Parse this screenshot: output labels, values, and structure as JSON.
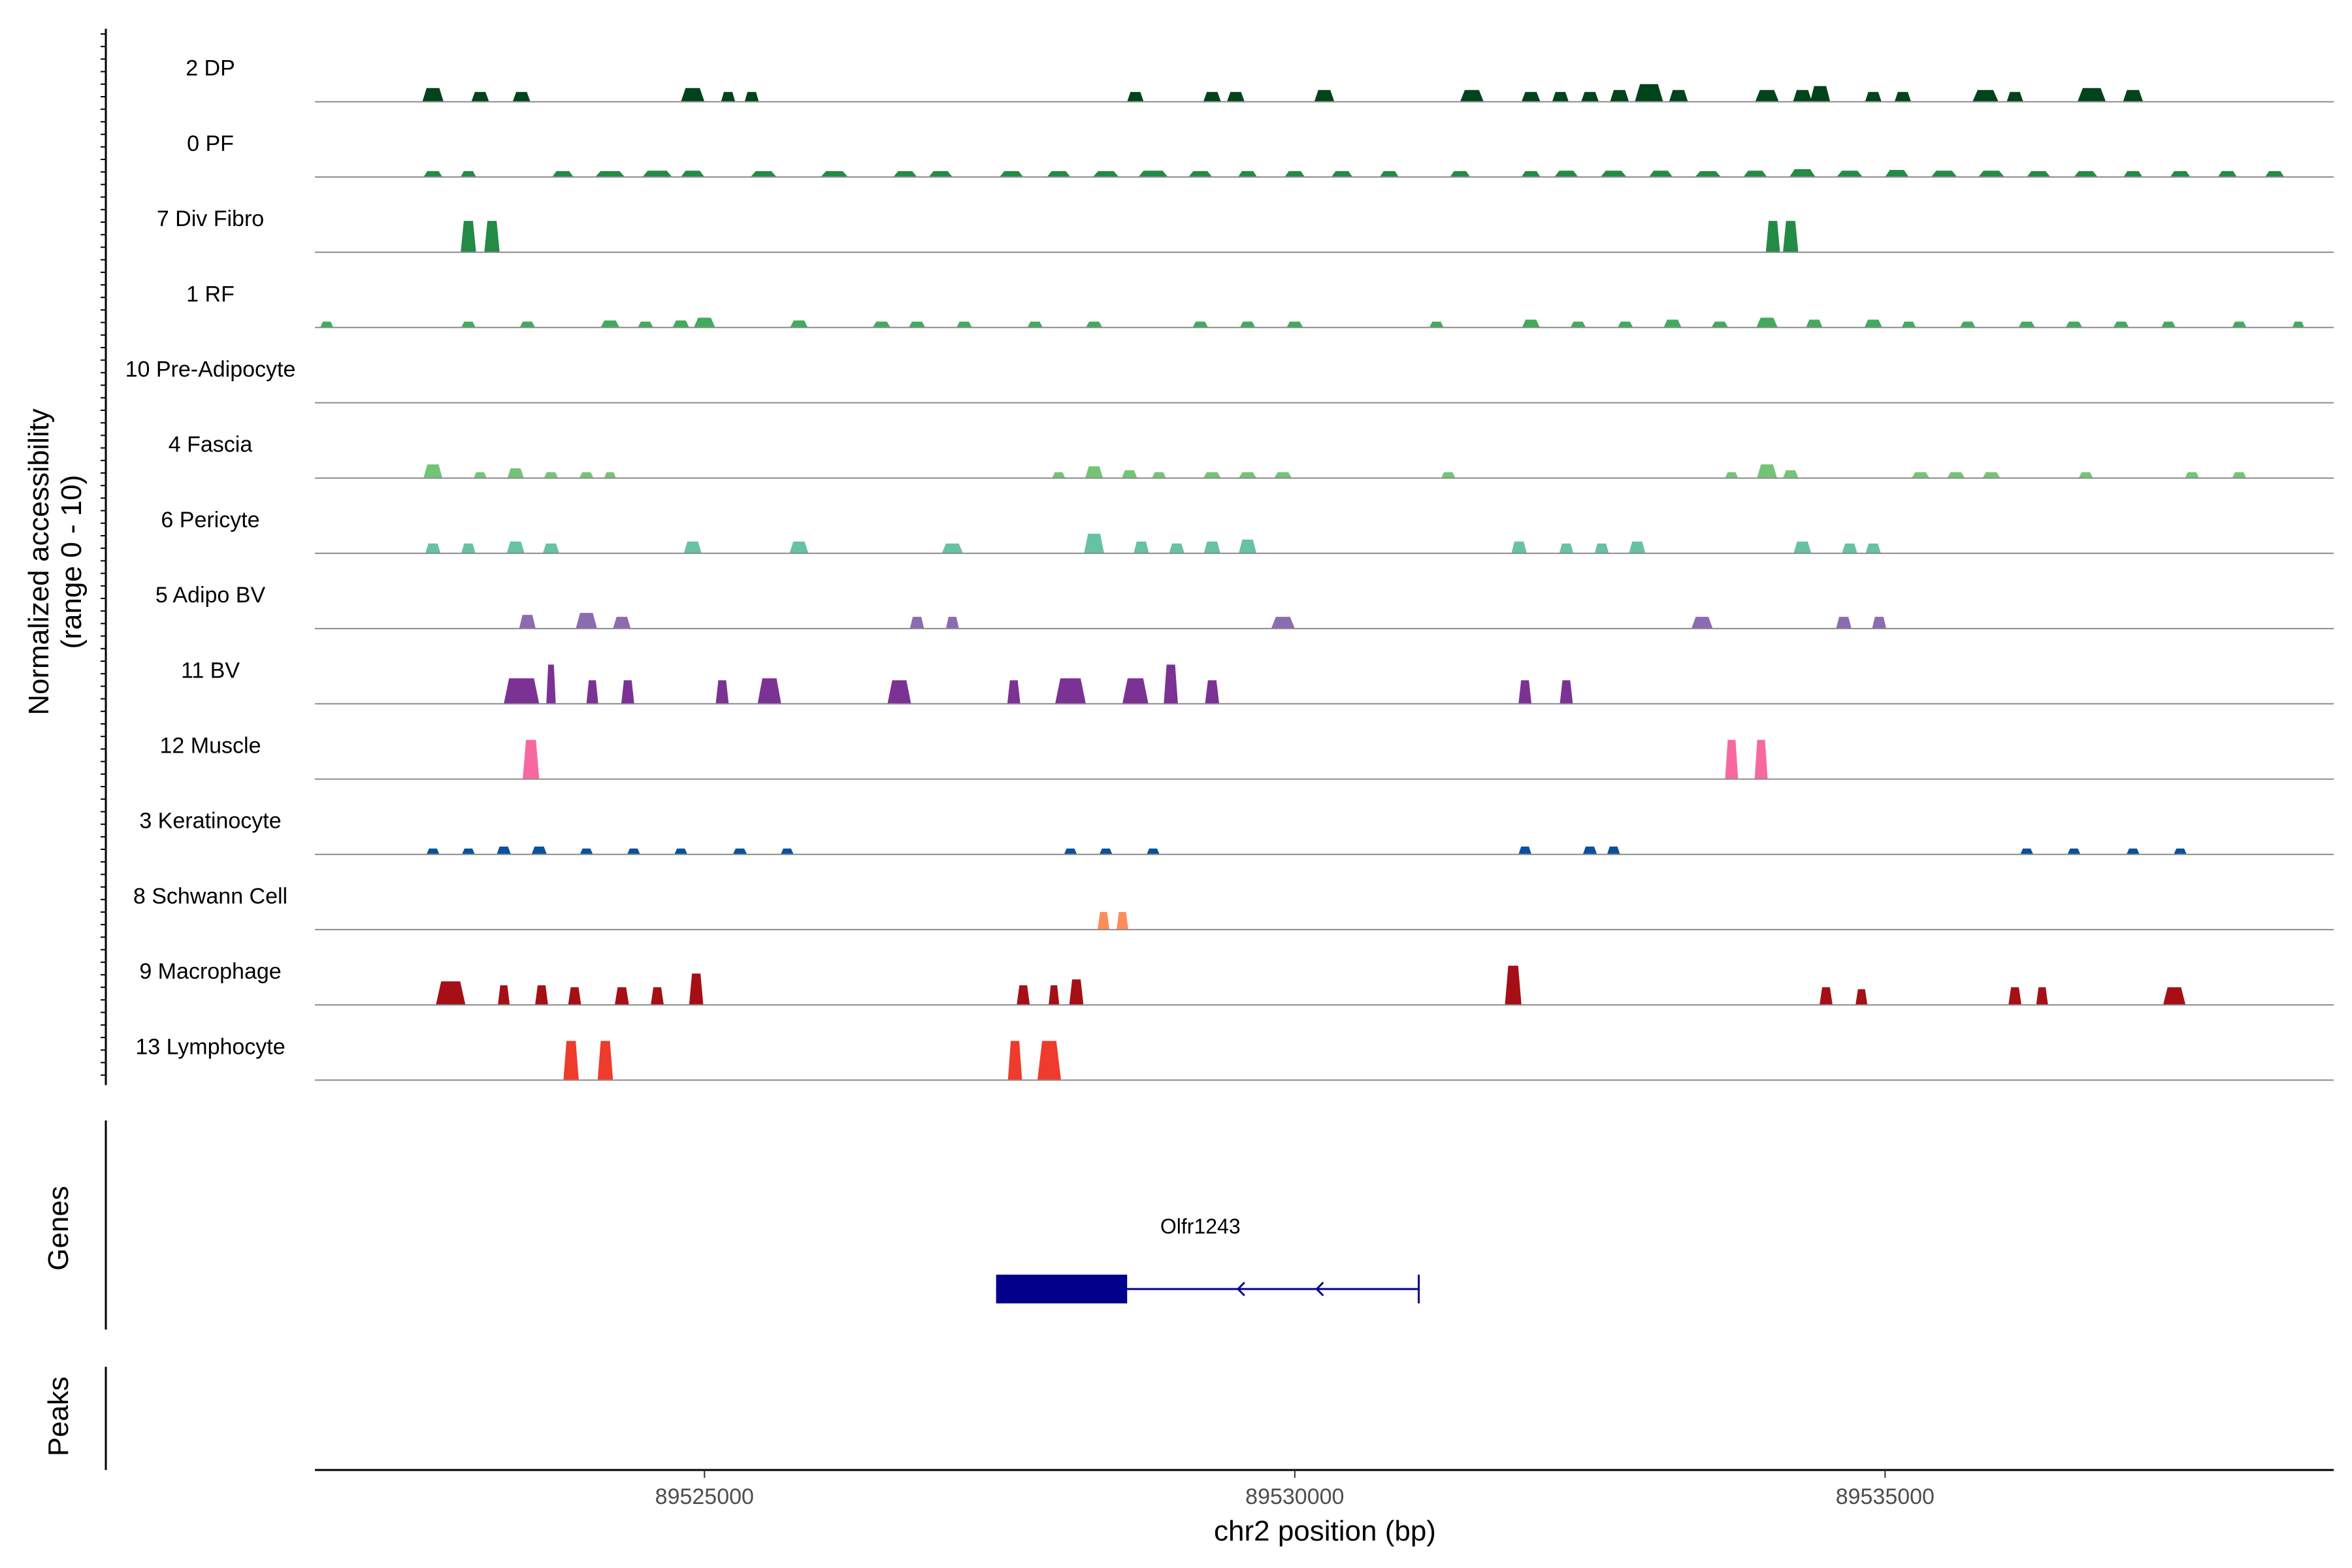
{
  "chart_data": {
    "type": "area",
    "y_axis_title": [
      "Normalized accessibility",
      "(range 0 - 10)"
    ],
    "genes_panel_title": "Genes",
    "peaks_panel_title": "Peaks",
    "xlabel": "chr2 position (bp)",
    "xlim": [
      89521700,
      89538800
    ],
    "x_ticks": [
      89525000,
      89530000,
      89535000
    ],
    "x_tick_labels": [
      "89525000",
      "89530000",
      "89535000"
    ],
    "ylim": [
      0,
      10
    ],
    "tracks": [
      {
        "name": "2 DP",
        "color": "#00441b",
        "peaks": [
          [
            89522700,
            180,
            3.5
          ],
          [
            89523100,
            150,
            2.5
          ],
          [
            89523450,
            150,
            2.5
          ],
          [
            89524900,
            200,
            3.5
          ],
          [
            89525200,
            120,
            2.5
          ],
          [
            89525400,
            120,
            2.5
          ],
          [
            89528650,
            140,
            2.5
          ],
          [
            89529300,
            150,
            2.5
          ],
          [
            89529500,
            150,
            2.5
          ],
          [
            89530250,
            170,
            3
          ],
          [
            89531500,
            200,
            3
          ],
          [
            89532000,
            160,
            2.5
          ],
          [
            89532250,
            140,
            2.5
          ],
          [
            89532500,
            150,
            2.5
          ],
          [
            89532750,
            160,
            3
          ],
          [
            89533000,
            240,
            4.5
          ],
          [
            89533250,
            160,
            3
          ],
          [
            89534000,
            200,
            3
          ],
          [
            89534300,
            160,
            3
          ],
          [
            89534450,
            170,
            4
          ],
          [
            89534900,
            140,
            2.5
          ],
          [
            89535150,
            140,
            2.5
          ],
          [
            89535850,
            220,
            3
          ],
          [
            89536100,
            140,
            2.5
          ],
          [
            89536750,
            240,
            3.5
          ],
          [
            89537100,
            170,
            3
          ]
        ]
      },
      {
        "name": "0 PF",
        "color": "#238b45",
        "peaks": [
          [
            89522700,
            160,
            1.5
          ],
          [
            89523000,
            130,
            1.5
          ],
          [
            89523800,
            180,
            1.5
          ],
          [
            89524200,
            250,
            1.5
          ],
          [
            89524600,
            250,
            1.6
          ],
          [
            89524900,
            200,
            1.6
          ],
          [
            89525500,
            220,
            1.5
          ],
          [
            89526100,
            230,
            1.5
          ],
          [
            89526700,
            200,
            1.5
          ],
          [
            89527000,
            200,
            1.5
          ],
          [
            89527600,
            200,
            1.5
          ],
          [
            89528000,
            200,
            1.5
          ],
          [
            89528400,
            220,
            1.5
          ],
          [
            89528800,
            250,
            1.6
          ],
          [
            89529200,
            200,
            1.5
          ],
          [
            89529600,
            160,
            1.5
          ],
          [
            89530000,
            170,
            1.5
          ],
          [
            89530400,
            180,
            1.5
          ],
          [
            89530800,
            160,
            1.5
          ],
          [
            89531400,
            170,
            1.5
          ],
          [
            89532000,
            160,
            1.5
          ],
          [
            89532300,
            200,
            1.6
          ],
          [
            89532700,
            220,
            1.6
          ],
          [
            89533100,
            200,
            1.6
          ],
          [
            89533500,
            220,
            1.5
          ],
          [
            89533900,
            200,
            1.6
          ],
          [
            89534300,
            220,
            2
          ],
          [
            89534700,
            220,
            1.6
          ],
          [
            89535100,
            200,
            1.8
          ],
          [
            89535500,
            220,
            1.6
          ],
          [
            89535900,
            220,
            1.6
          ],
          [
            89536300,
            200,
            1.5
          ],
          [
            89536700,
            200,
            1.5
          ],
          [
            89537100,
            160,
            1.5
          ],
          [
            89537500,
            170,
            1.5
          ],
          [
            89537900,
            160,
            1.5
          ],
          [
            89538300,
            160,
            1.5
          ]
        ]
      },
      {
        "name": "7 Div Fibro",
        "color": "#238b45",
        "peaks": [
          [
            89523000,
            130,
            8
          ],
          [
            89523200,
            130,
            8
          ],
          [
            89534050,
            120,
            8
          ],
          [
            89534200,
            130,
            8
          ]
        ]
      },
      {
        "name": "1 RF",
        "color": "#41ab5d",
        "peaks": [
          [
            89521800,
            110,
            1.5
          ],
          [
            89523000,
            120,
            1.5
          ],
          [
            89523500,
            130,
            1.5
          ],
          [
            89524200,
            160,
            1.8
          ],
          [
            89524500,
            130,
            1.5
          ],
          [
            89524800,
            140,
            1.8
          ],
          [
            89525000,
            180,
            2.5
          ],
          [
            89525800,
            150,
            1.8
          ],
          [
            89526500,
            150,
            1.5
          ],
          [
            89526800,
            140,
            1.5
          ],
          [
            89527200,
            130,
            1.5
          ],
          [
            89527800,
            130,
            1.5
          ],
          [
            89528300,
            140,
            1.5
          ],
          [
            89529200,
            130,
            1.5
          ],
          [
            89529600,
            130,
            1.5
          ],
          [
            89530000,
            140,
            1.5
          ],
          [
            89531200,
            120,
            1.5
          ],
          [
            89532000,
            150,
            2
          ],
          [
            89532400,
            130,
            1.5
          ],
          [
            89532800,
            130,
            1.5
          ],
          [
            89533200,
            150,
            2
          ],
          [
            89533600,
            140,
            1.5
          ],
          [
            89534000,
            180,
            2.5
          ],
          [
            89534400,
            140,
            2
          ],
          [
            89534900,
            150,
            2
          ],
          [
            89535200,
            120,
            1.5
          ],
          [
            89535700,
            130,
            1.5
          ],
          [
            89536200,
            140,
            1.5
          ],
          [
            89536600,
            140,
            1.5
          ],
          [
            89537000,
            130,
            1.5
          ],
          [
            89537400,
            120,
            1.5
          ],
          [
            89538000,
            120,
            1.5
          ],
          [
            89538500,
            100,
            1.5
          ]
        ]
      },
      {
        "name": "10 Pre-Adipocyte",
        "color": "#74c476",
        "peaks": []
      },
      {
        "name": "4 Fascia",
        "color": "#74c476",
        "peaks": [
          [
            89522700,
            160,
            3.5
          ],
          [
            89523100,
            110,
            1.5
          ],
          [
            89523400,
            140,
            2.5
          ],
          [
            89523700,
            120,
            1.5
          ],
          [
            89524000,
            120,
            1.5
          ],
          [
            89524200,
            100,
            1.5
          ],
          [
            89528000,
            110,
            1.5
          ],
          [
            89528300,
            150,
            3
          ],
          [
            89528600,
            130,
            2
          ],
          [
            89528850,
            120,
            1.5
          ],
          [
            89529300,
            150,
            1.5
          ],
          [
            89529600,
            150,
            1.5
          ],
          [
            89529900,
            150,
            1.5
          ],
          [
            89531300,
            120,
            1.5
          ],
          [
            89533700,
            110,
            1.5
          ],
          [
            89534000,
            170,
            3.5
          ],
          [
            89534200,
            130,
            2
          ],
          [
            89535300,
            150,
            1.5
          ],
          [
            89535600,
            150,
            1.5
          ],
          [
            89535900,
            150,
            1.5
          ],
          [
            89536700,
            120,
            1.5
          ],
          [
            89537600,
            120,
            1.5
          ],
          [
            89538000,
            120,
            1.5
          ]
        ]
      },
      {
        "name": "6 Pericyte",
        "color": "#66c2a4",
        "peaks": [
          [
            89522700,
            130,
            2.5
          ],
          [
            89523000,
            120,
            2.5
          ],
          [
            89523400,
            150,
            3
          ],
          [
            89523700,
            140,
            2.5
          ],
          [
            89524900,
            150,
            3
          ],
          [
            89525800,
            160,
            3
          ],
          [
            89527100,
            180,
            2.5
          ],
          [
            89528300,
            170,
            5
          ],
          [
            89528700,
            130,
            3
          ],
          [
            89529000,
            130,
            2.5
          ],
          [
            89529300,
            140,
            3
          ],
          [
            89529600,
            150,
            3.5
          ],
          [
            89531900,
            130,
            3
          ],
          [
            89532300,
            120,
            2.5
          ],
          [
            89532600,
            120,
            2.5
          ],
          [
            89532900,
            140,
            3
          ],
          [
            89534300,
            150,
            3
          ],
          [
            89534700,
            130,
            2.5
          ],
          [
            89534900,
            130,
            2.5
          ]
        ]
      },
      {
        "name": "5 Adipo BV",
        "color": "#8c6bb1",
        "peaks": [
          [
            89523500,
            140,
            3.5
          ],
          [
            89524000,
            180,
            4
          ],
          [
            89524300,
            150,
            3
          ],
          [
            89526800,
            120,
            3
          ],
          [
            89527100,
            110,
            3
          ],
          [
            89529900,
            200,
            3
          ],
          [
            89533450,
            180,
            3
          ],
          [
            89534650,
            130,
            3
          ],
          [
            89534950,
            120,
            3
          ]
        ]
      },
      {
        "name": "11 BV",
        "color": "#7b3294",
        "peaks": [
          [
            89523450,
            300,
            6.5
          ],
          [
            89523700,
            80,
            10
          ],
          [
            89524050,
            100,
            6
          ],
          [
            89524350,
            110,
            6
          ],
          [
            89525150,
            110,
            6
          ],
          [
            89525550,
            200,
            6.5
          ],
          [
            89526650,
            200,
            6
          ],
          [
            89527620,
            110,
            6
          ],
          [
            89528100,
            260,
            6.5
          ],
          [
            89528650,
            220,
            6.5
          ],
          [
            89528950,
            120,
            10
          ],
          [
            89529300,
            120,
            6
          ],
          [
            89531950,
            110,
            6
          ],
          [
            89532300,
            110,
            6
          ]
        ]
      },
      {
        "name": "12 Muscle",
        "color": "#f768a1",
        "peaks": [
          [
            89523530,
            140,
            10
          ],
          [
            89533700,
            110,
            10
          ],
          [
            89533950,
            110,
            10
          ]
        ]
      },
      {
        "name": "3 Keratinocyte",
        "color": "#08519c",
        "peaks": [
          [
            89522700,
            110,
            1.5
          ],
          [
            89523000,
            110,
            1.5
          ],
          [
            89523300,
            120,
            2
          ],
          [
            89523600,
            130,
            2
          ],
          [
            89524000,
            110,
            1.5
          ],
          [
            89524400,
            110,
            1.5
          ],
          [
            89524800,
            110,
            1.5
          ],
          [
            89525300,
            120,
            1.5
          ],
          [
            89525700,
            110,
            1.5
          ],
          [
            89528100,
            110,
            1.5
          ],
          [
            89528400,
            110,
            1.5
          ],
          [
            89528800,
            110,
            1.5
          ],
          [
            89531950,
            110,
            2
          ],
          [
            89532500,
            120,
            2
          ],
          [
            89532700,
            110,
            2
          ],
          [
            89536200,
            110,
            1.5
          ],
          [
            89536600,
            110,
            1.5
          ],
          [
            89537100,
            110,
            1.5
          ],
          [
            89537500,
            110,
            1.5
          ]
        ]
      },
      {
        "name": "8 Schwann Cell",
        "color": "#fc8d59",
        "peaks": [
          [
            89528380,
            100,
            4.5
          ],
          [
            89528540,
            100,
            4.5
          ]
        ]
      },
      {
        "name": "9 Macrophage",
        "color": "#a50f15",
        "peaks": [
          [
            89522850,
            250,
            6
          ],
          [
            89523300,
            100,
            5
          ],
          [
            89523620,
            110,
            5
          ],
          [
            89523900,
            110,
            4.5
          ],
          [
            89524300,
            120,
            4.5
          ],
          [
            89524600,
            110,
            4.5
          ],
          [
            89524930,
            120,
            8
          ],
          [
            89527700,
            110,
            5
          ],
          [
            89527960,
            90,
            5
          ],
          [
            89528150,
            120,
            6.5
          ],
          [
            89531850,
            140,
            10
          ],
          [
            89534500,
            110,
            4.5
          ],
          [
            89534800,
            100,
            4
          ],
          [
            89536100,
            110,
            4.5
          ],
          [
            89536330,
            100,
            4.5
          ],
          [
            89537450,
            190,
            4.5
          ]
        ]
      },
      {
        "name": "13 Lymphocyte",
        "color": "#ef3b2c",
        "peaks": [
          [
            89523870,
            130,
            10
          ],
          [
            89524160,
            130,
            10
          ],
          [
            89527630,
            120,
            10
          ],
          [
            89527920,
            200,
            10
          ]
        ]
      }
    ],
    "genes": [
      {
        "name": "Olfr1243",
        "start": 89527470,
        "end": 89531050,
        "strand": "-",
        "thick_start": 89527470,
        "thick_end": 89528580,
        "label_x": 89529200
      }
    ]
  }
}
